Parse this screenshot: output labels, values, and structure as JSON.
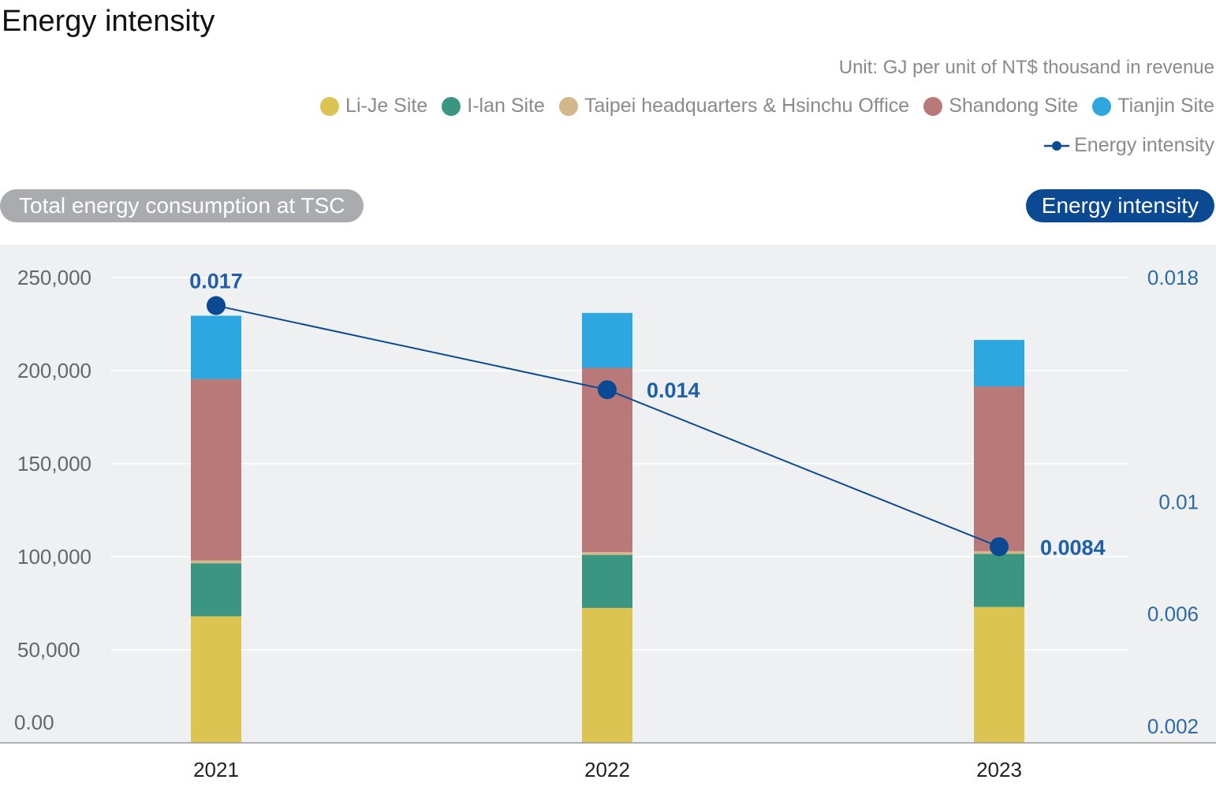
{
  "title": "Energy intensity",
  "unit_note": "Unit: GJ per unit of NT$ thousand in revenue",
  "legend": [
    {
      "label": "Li-Je Site",
      "color": "#dcc453"
    },
    {
      "label": "I-lan Site",
      "color": "#3a9680"
    },
    {
      "label": "Taipei headquarters & Hsinchu Office",
      "color": "#d3b78b"
    },
    {
      "label": "Shandong Site",
      "color": "#b97979"
    },
    {
      "label": "Tianjin Site",
      "color": "#2ea6e0"
    }
  ],
  "line_legend": {
    "label": "Energy intensity",
    "color": "#0b4a93"
  },
  "left_pill": "Total energy consumption at TSC",
  "right_pill": "Energy intensity",
  "chart_data": {
    "type": "bar",
    "stacked": true,
    "categories": [
      "2021",
      "2022",
      "2023"
    ],
    "series": [
      {
        "name": "Li-Je Site",
        "color": "#dcc453",
        "values": [
          68000,
          72500,
          73000
        ]
      },
      {
        "name": "I-lan Site",
        "color": "#3a9680",
        "values": [
          28500,
          28500,
          28500
        ]
      },
      {
        "name": "Taipei headquarters & Hsinchu Office",
        "color": "#d3b78b",
        "values": [
          1500,
          1500,
          1500
        ]
      },
      {
        "name": "Shandong Site",
        "color": "#b97979",
        "values": [
          97500,
          99000,
          88500
        ]
      },
      {
        "name": "Tianjin Site",
        "color": "#2ea6e0",
        "values": [
          34000,
          29500,
          25000
        ]
      }
    ],
    "line_series": {
      "name": "Energy intensity",
      "color": "#0b4a93",
      "values": [
        0.017,
        0.014,
        0.0084
      ],
      "labels": [
        "0.017",
        "0.014",
        "0.0084"
      ]
    },
    "y_left": {
      "ticks": [
        0,
        50000,
        100000,
        150000,
        200000,
        250000
      ],
      "tick_labels": [
        "0.00",
        "50,000",
        "100,000",
        "150,000",
        "200,000",
        "250,000"
      ],
      "ylim": [
        0,
        250000
      ]
    },
    "y_right": {
      "tick_labels": [
        "0.002",
        "0.006",
        "0.01",
        "0.018"
      ],
      "ylim": [
        0,
        0.018
      ]
    },
    "grid": true
  }
}
